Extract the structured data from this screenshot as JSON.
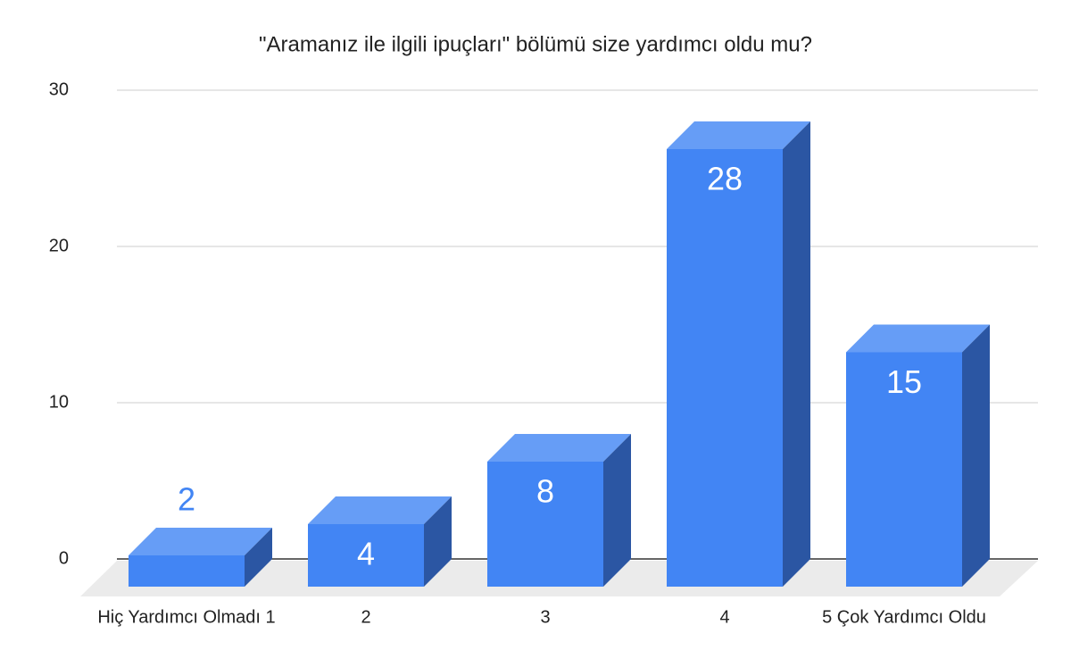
{
  "chart_data": {
    "type": "bar3d",
    "title": "\"Aramanız ile ilgili ipuçları\" bölümü size yardımcı oldu mu?",
    "categories": [
      "Hiç Yardımcı Olmadı 1",
      "2",
      "3",
      "4",
      "5 Çok Yardımcı Oldu"
    ],
    "values": [
      2,
      4,
      8,
      28,
      15
    ],
    "color": "#4285f4",
    "ylim": [
      0,
      30
    ],
    "yticks": [
      0,
      10,
      20,
      30
    ],
    "grid": true
  }
}
